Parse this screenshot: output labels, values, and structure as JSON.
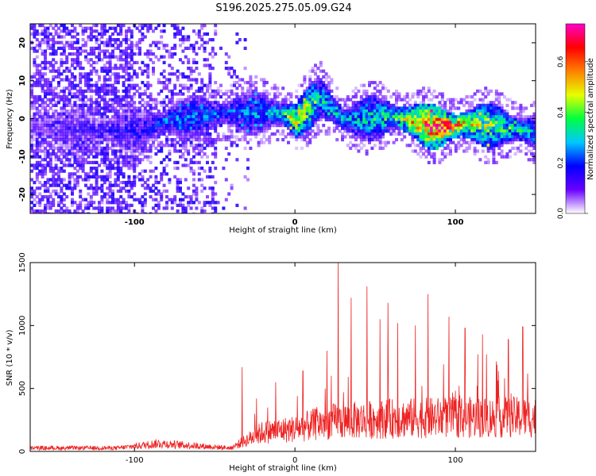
{
  "title": "S196.2025.275.05.09.G24",
  "colors": {
    "line": "#ee2222",
    "frame": "#000000",
    "colormap": [
      "#ffffff",
      "#6a00ff",
      "#0000ff",
      "#00c8ff",
      "#00ff40",
      "#e6ff00",
      "#ff8000",
      "#ff0000",
      "#ff00c8"
    ]
  },
  "chart_data": [
    {
      "type": "heatmap",
      "xlabel": "Height of straight line (km)",
      "ylabel": "Frequency (Hz)",
      "xlim": [
        -165,
        150
      ],
      "ylim": [
        -25,
        25
      ],
      "x_ticks": [
        -100,
        0,
        100
      ],
      "y_ticks": [
        -20,
        -10,
        0,
        10,
        20
      ],
      "colorbar": {
        "label": "Normalized spectral amplitude",
        "range": [
          0,
          0.75
        ],
        "ticks": [
          0.0,
          0.2,
          0.4,
          0.6
        ]
      },
      "ridge": [
        {
          "x": -165,
          "f": -2,
          "amp": 0.1
        },
        {
          "x": -100,
          "f": -3,
          "amp": 0.18
        },
        {
          "x": -80,
          "f": 0,
          "amp": 0.25
        },
        {
          "x": -40,
          "f": 2,
          "amp": 0.25
        },
        {
          "x": -10,
          "f": 2,
          "amp": 0.3
        },
        {
          "x": 0,
          "f": 0,
          "amp": 0.55
        },
        {
          "x": 15,
          "f": 6,
          "amp": 0.35
        },
        {
          "x": 30,
          "f": 0,
          "amp": 0.3
        },
        {
          "x": 60,
          "f": 1,
          "amp": 0.4
        },
        {
          "x": 88,
          "f": -2,
          "amp": 0.75
        },
        {
          "x": 110,
          "f": -1,
          "amp": 0.5
        },
        {
          "x": 150,
          "f": -3,
          "amp": 0.3
        }
      ]
    },
    {
      "type": "line",
      "xlabel": "Height of straight line (km)",
      "ylabel": "SNR (10 * v/v)",
      "xlim": [
        -165,
        150
      ],
      "ylim": [
        0,
        1500
      ],
      "x_ticks": [
        -100,
        0,
        100
      ],
      "y_ticks": [
        0,
        500,
        1000,
        1500
      ],
      "baseline": [
        {
          "x": -165,
          "y": 30
        },
        {
          "x": -110,
          "y": 30
        },
        {
          "x": -85,
          "y": 70
        },
        {
          "x": -40,
          "y": 30
        },
        {
          "x": -33,
          "y": 80
        },
        {
          "x": -20,
          "y": 170
        },
        {
          "x": 0,
          "y": 200
        },
        {
          "x": 20,
          "y": 260
        },
        {
          "x": 60,
          "y": 290
        },
        {
          "x": 100,
          "y": 300
        },
        {
          "x": 150,
          "y": 300
        }
      ],
      "peaks": [
        {
          "x": -33,
          "y": 670
        },
        {
          "x": -24,
          "y": 420
        },
        {
          "x": -12,
          "y": 550
        },
        {
          "x": 5,
          "y": 640
        },
        {
          "x": 20,
          "y": 800
        },
        {
          "x": 27,
          "y": 1500
        },
        {
          "x": 35,
          "y": 1220
        },
        {
          "x": 45,
          "y": 1310
        },
        {
          "x": 53,
          "y": 1050
        },
        {
          "x": 58,
          "y": 1180
        },
        {
          "x": 64,
          "y": 1020
        },
        {
          "x": 75,
          "y": 1000
        },
        {
          "x": 83,
          "y": 1250
        },
        {
          "x": 96,
          "y": 1070
        },
        {
          "x": 106,
          "y": 980
        },
        {
          "x": 117,
          "y": 930
        },
        {
          "x": 133,
          "y": 890
        },
        {
          "x": 142,
          "y": 990
        }
      ]
    }
  ]
}
